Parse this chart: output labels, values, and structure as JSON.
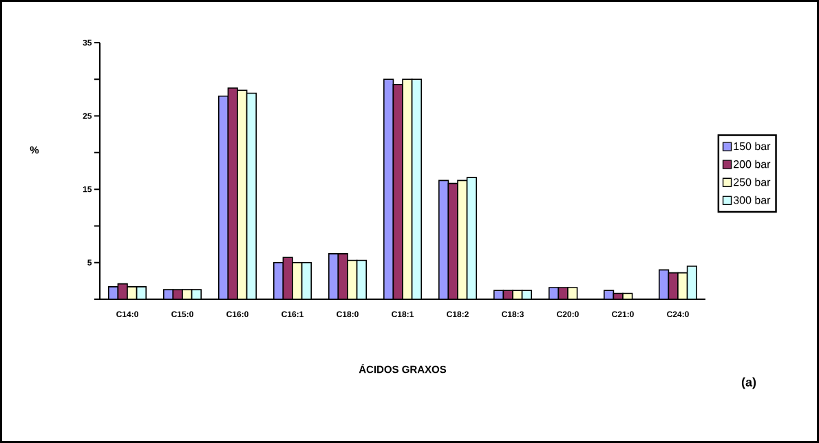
{
  "chart_data": {
    "type": "bar",
    "ylabel": "%",
    "xlabel": "ÁCIDOS GRAXOS",
    "categories": [
      "C14:0",
      "C15:0",
      "C16:0",
      "C16:1",
      "C18:0",
      "C18:1",
      "C18:2",
      "C18:3",
      "C20:0",
      "C21:0",
      "C24:0"
    ],
    "series": [
      {
        "name": "150 bar",
        "color": "#9999ff",
        "values": [
          1.7,
          1.3,
          27.7,
          5.0,
          6.2,
          30.0,
          16.2,
          1.2,
          1.6,
          1.2,
          4.0
        ]
      },
      {
        "name": "200 bar",
        "color": "#993366",
        "values": [
          2.1,
          1.3,
          28.8,
          5.7,
          6.2,
          29.3,
          15.8,
          1.2,
          1.6,
          0.8,
          3.6
        ]
      },
      {
        "name": "250 bar",
        "color": "#ffffcc",
        "values": [
          1.7,
          1.3,
          28.5,
          5.0,
          5.3,
          30.0,
          16.2,
          1.2,
          1.6,
          0.8,
          3.6
        ]
      },
      {
        "name": "300 bar",
        "color": "#ccffff",
        "values": [
          1.7,
          1.3,
          28.1,
          5.0,
          5.3,
          30.0,
          16.6,
          1.2,
          null,
          null,
          4.5
        ]
      }
    ],
    "ylim": [
      0,
      35
    ],
    "yticks": [
      {
        "value": 0,
        "label": null
      },
      5,
      {
        "value": 10,
        "label": null
      },
      15,
      {
        "value": 20,
        "label": null
      },
      25,
      {
        "value": 30,
        "label": null
      },
      35
    ],
    "grid": false,
    "legend": "right",
    "annotations": [
      "(a)"
    ]
  }
}
